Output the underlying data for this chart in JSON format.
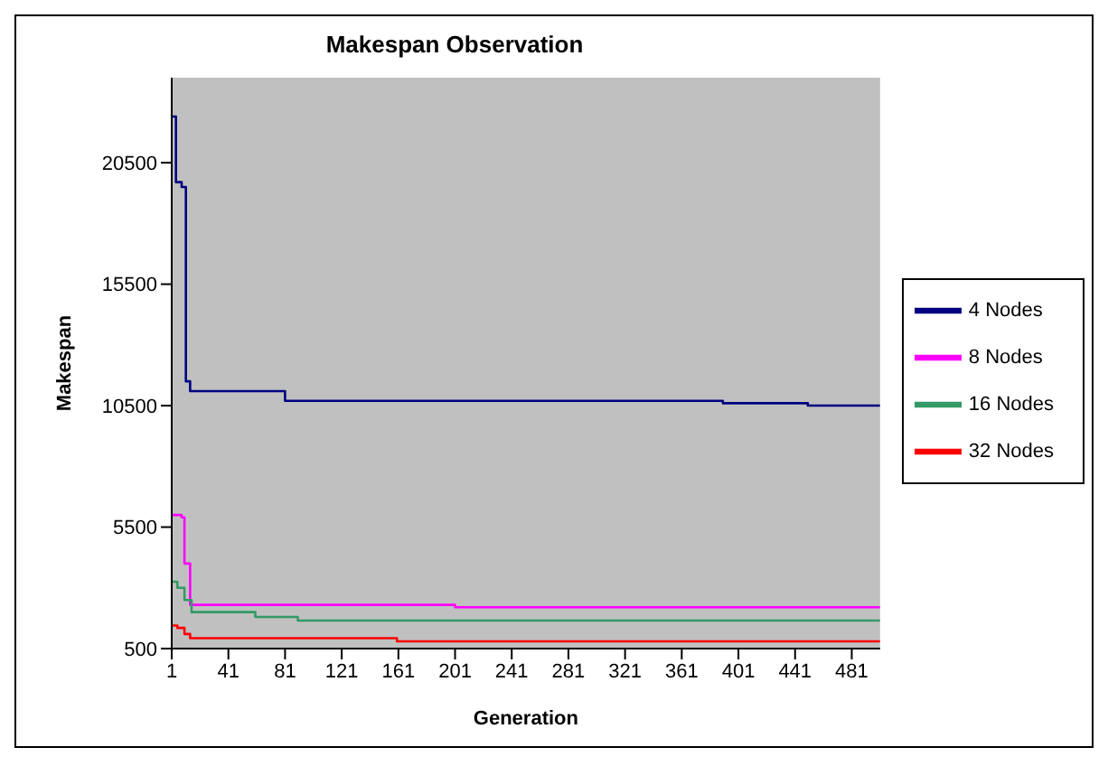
{
  "chart_data": {
    "type": "step",
    "title": "Makespan Observation",
    "xlabel": "Generation",
    "ylabel": "Makespan",
    "xlim": [
      1,
      501
    ],
    "xticks": [
      1,
      41,
      81,
      121,
      161,
      201,
      241,
      281,
      321,
      361,
      401,
      441,
      481
    ],
    "ylim": [
      500,
      24000
    ],
    "yticks": [
      500,
      5500,
      10500,
      15500,
      20500
    ],
    "grid": false,
    "legend": "right",
    "marker": "none",
    "line_style": "solid",
    "series": [
      {
        "name": "4 Nodes",
        "color": "#000080",
        "x": [
          1,
          4,
          8,
          11,
          14,
          81,
          390,
          450,
          501
        ],
        "values": [
          22400,
          19700,
          19500,
          11500,
          11100,
          10700,
          10600,
          10500,
          10500
        ]
      },
      {
        "name": "8 Nodes",
        "color": "#ff00ff",
        "x": [
          1,
          8,
          10,
          14,
          201,
          501
        ],
        "values": [
          6000,
          5900,
          4000,
          2300,
          2200,
          2200
        ]
      },
      {
        "name": "16 Nodes",
        "color": "#339966",
        "x": [
          1,
          5,
          10,
          15,
          60,
          90,
          501
        ],
        "values": [
          3250,
          3000,
          2500,
          2000,
          1800,
          1650,
          1650
        ]
      },
      {
        "name": "32 Nodes",
        "color": "#ff0000",
        "x": [
          1,
          5,
          10,
          14,
          160,
          501
        ],
        "values": [
          1450,
          1350,
          1100,
          930,
          800,
          800
        ]
      }
    ]
  }
}
